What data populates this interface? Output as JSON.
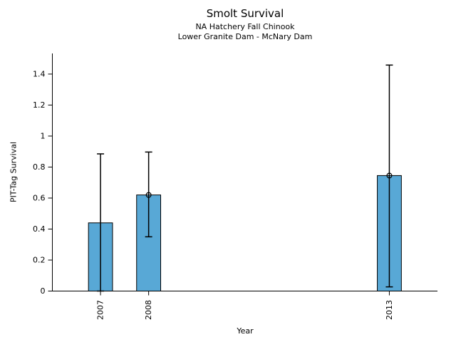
{
  "chart_data": {
    "type": "bar",
    "title": "Smolt Survival",
    "subtitle": [
      "NA Hatchery Fall Chinook",
      "Lower Granite Dam - McNary Dam"
    ],
    "xlabel": "Year",
    "ylabel": "PIT-Tag Survival",
    "categories": [
      "2007",
      "2008",
      "2013"
    ],
    "x": [
      2007,
      2008,
      2013
    ],
    "values": [
      0.44,
      0.62,
      0.745
    ],
    "error_low": [
      0.0,
      0.35,
      0.027
    ],
    "error_high": [
      0.885,
      0.897,
      1.458
    ],
    "point_markers": [
      false,
      true,
      true
    ],
    "xlim": [
      2006,
      2014
    ],
    "ylim": [
      0,
      1.533
    ],
    "yticks": [
      0,
      0.2,
      0.4,
      0.6,
      0.8,
      1,
      1.2,
      1.4
    ],
    "ytick_labels": [
      "0",
      "0.2",
      "0.4",
      "0.6",
      "0.8",
      "1",
      "1.2",
      "1.4"
    ],
    "bar_width_years": 0.5,
    "bar_color": "#58A8D6",
    "bar_edge_color": "#000000",
    "errorbar_color": "#000000",
    "grid": false,
    "legend": null
  }
}
